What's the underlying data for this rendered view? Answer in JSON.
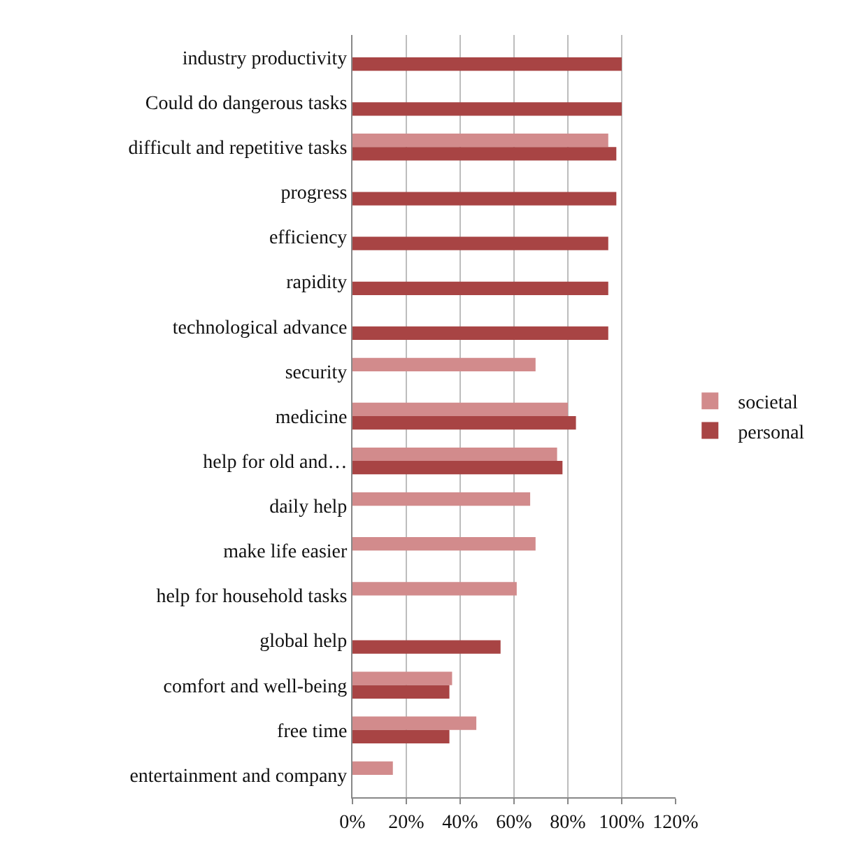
{
  "chart_data": {
    "type": "bar",
    "orientation": "horizontal",
    "categories": [
      "industry productivity",
      "Could do dangerous tasks",
      "difficult and repetitive tasks",
      "progress",
      "efficiency",
      "rapidity",
      "technological advance",
      "security",
      "medicine",
      "help for old and…",
      "daily help",
      "make life easier",
      "help for household tasks",
      "global help",
      "comfort and well-being",
      "free time",
      "entertainment and company"
    ],
    "series": [
      {
        "name": "societal",
        "color": "#d28b8c",
        "values": [
          null,
          null,
          95,
          null,
          null,
          null,
          null,
          68,
          80,
          76,
          66,
          68,
          61,
          null,
          37,
          46,
          15
        ]
      },
      {
        "name": "personal",
        "color": "#a84444",
        "values": [
          100,
          100,
          98,
          98,
          95,
          95,
          95,
          null,
          83,
          78,
          null,
          null,
          null,
          55,
          36,
          36,
          null
        ]
      }
    ],
    "xlim": [
      0,
      120
    ],
    "xticks": [
      {
        "value": 0,
        "label": "0%"
      },
      {
        "value": 20,
        "label": "20%"
      },
      {
        "value": 40,
        "label": "40%"
      },
      {
        "value": 60,
        "label": "60%"
      },
      {
        "value": 80,
        "label": "80%"
      },
      {
        "value": 100,
        "label": "100%"
      },
      {
        "value": 120,
        "label": "120%"
      }
    ],
    "grid": "x",
    "legend": "right"
  }
}
